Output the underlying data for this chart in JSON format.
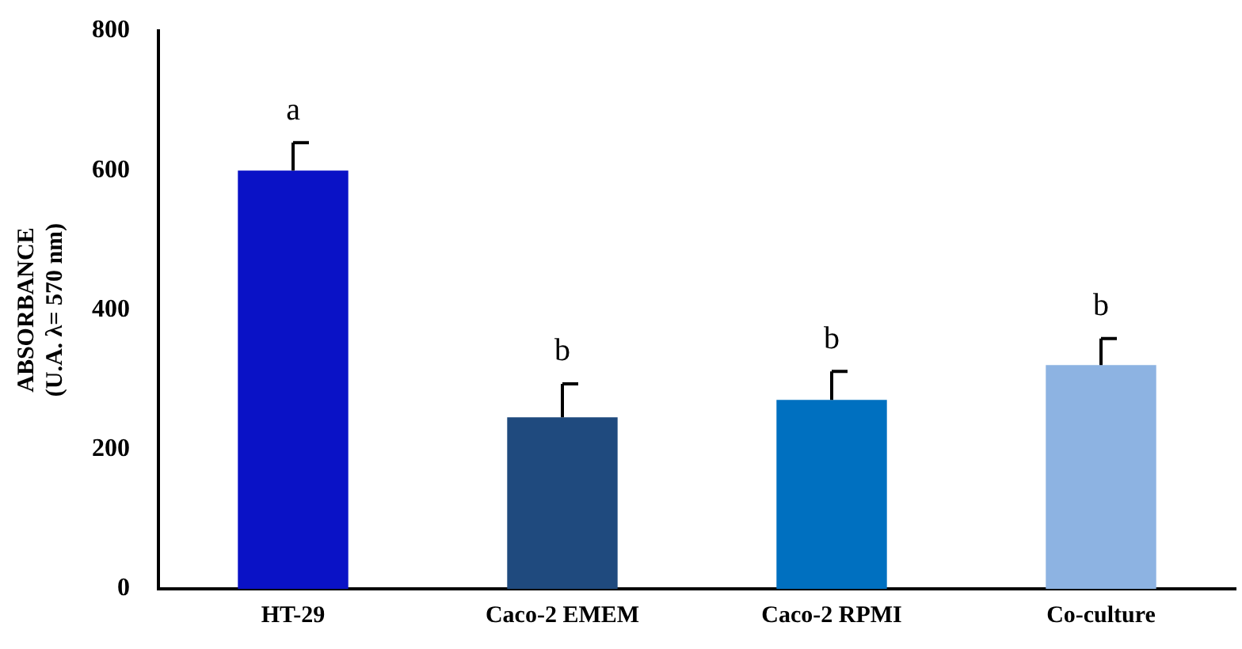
{
  "chart_data": {
    "type": "bar",
    "ylabel": "ABSORBANCE\n(U.A. λ= 570 nm)",
    "categories": [
      "HT-29",
      "Caco-2 EMEM",
      "Caco-2 RPMI",
      "Co-culture"
    ],
    "values": [
      600,
      246,
      271,
      321
    ],
    "colors": [
      "#0a12c6",
      "#1f4a7e",
      "#0070c0",
      "#8db3e2"
    ],
    "errors": [
      40,
      48,
      41,
      38
    ],
    "ylim": [
      0,
      800
    ],
    "yticks": [
      0,
      200,
      400,
      600,
      800
    ],
    "grid": false,
    "legend": false,
    "annotations": [
      "a",
      "b",
      "b",
      "b"
    ]
  }
}
